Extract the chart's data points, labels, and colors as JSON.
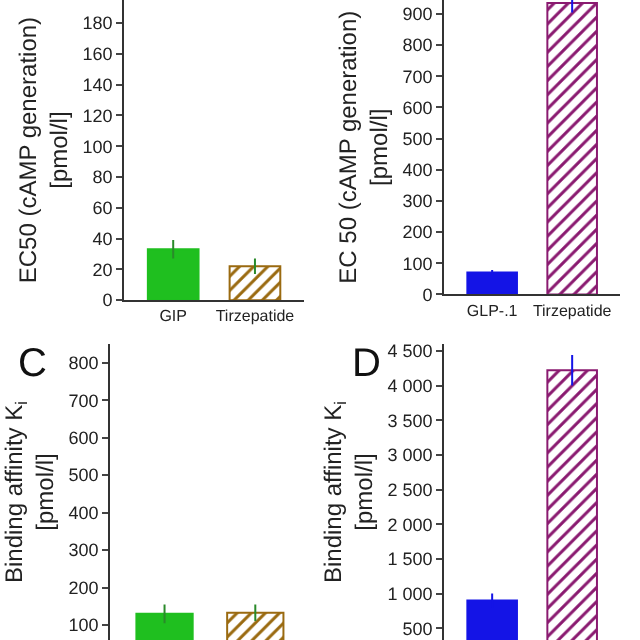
{
  "chart_data": [
    {
      "type": "bar",
      "categories": [
        "GIP",
        "Tirzepatide"
      ],
      "values": [
        33,
        22
      ],
      "errors": [
        6,
        5
      ],
      "colors": [
        "#1fbf1f",
        "#9a6a10"
      ],
      "ylabel": "EC50 (cAMP generation)\n[pmol/l]",
      "ylim": [
        0,
        195
      ],
      "yticks": [
        0,
        20,
        40,
        60,
        80,
        100,
        120,
        140,
        160,
        180
      ],
      "grid": false
    },
    {
      "type": "bar",
      "categories": [
        "GLP-.1",
        "Tirzepatide"
      ],
      "values": [
        70,
        935
      ],
      "errors": [
        8,
        30
      ],
      "colors": [
        "#1414e6",
        "#8a1a70"
      ],
      "ylabel": "EC 50 (cAMP generation)\n[pmol/l]",
      "ylim": [
        0,
        945
      ],
      "yticks": [
        0,
        100,
        200,
        300,
        400,
        500,
        600,
        700,
        800,
        900
      ],
      "grid": false
    },
    {
      "type": "bar",
      "title": "C",
      "categories": [
        null,
        null
      ],
      "values": [
        130,
        133
      ],
      "errors": [
        25,
        22
      ],
      "colors": [
        "#1fbf1f",
        "#9a6a10"
      ],
      "ylabel": "Binding affinity K$_{i}$\n[pmol/l]",
      "ylim": [
        60,
        850
      ],
      "yticks": [
        100,
        200,
        300,
        400,
        500,
        600,
        700,
        800
      ],
      "tick_labels": "y",
      "grid": false
    },
    {
      "type": "bar",
      "title": "D",
      "categories": [
        null,
        null
      ],
      "values": [
        900,
        4220
      ],
      "errors": [
        100,
        220
      ],
      "colors": [
        "#1414e6",
        "#8a1a70"
      ],
      "ylabel": "Binding affinity K$_{i}$\n[pmol/l]",
      "ylim": [
        330,
        4600
      ],
      "yticks": [
        {
          "value": 500,
          "label": "500"
        },
        {
          "value": 1000,
          "label": "1 000"
        },
        {
          "value": 1500,
          "label": "1 500"
        },
        {
          "value": 2000,
          "label": "2 000"
        },
        {
          "value": 2500,
          "label": "2 500"
        },
        {
          "value": 3000,
          "label": "3 000"
        },
        {
          "value": 3500,
          "label": "3 500"
        },
        {
          "value": 4000,
          "label": "4 000"
        },
        {
          "value": 4500,
          "label": "4 500"
        }
      ],
      "tick_labels": "y",
      "grid": false
    }
  ]
}
